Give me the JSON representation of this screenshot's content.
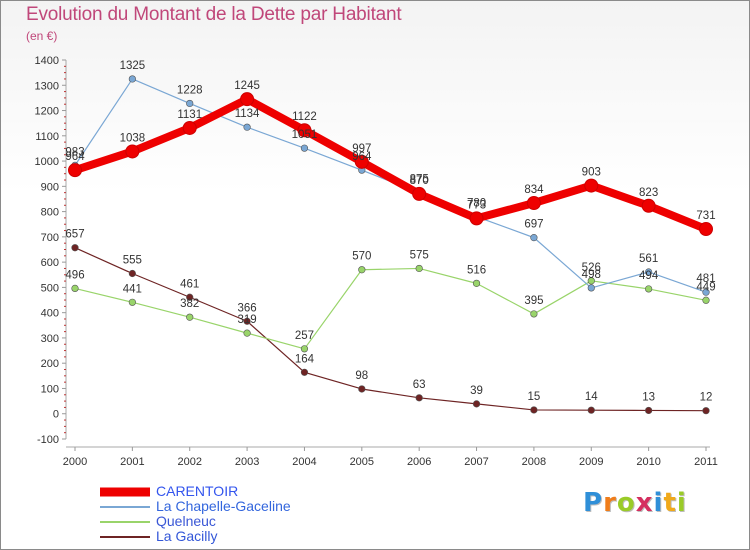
{
  "title": "Evolution du Montant de la Dette par Habitant",
  "subtitle": "(en €)",
  "logo": {
    "letters": [
      "P",
      "r",
      "o",
      "x",
      "i",
      "t",
      "i"
    ],
    "colors": [
      "#2f8fd8",
      "#f07d1a",
      "#9acb28",
      "#d52f5f",
      "#2f8fd8",
      "#f0a91a",
      "#9acb28"
    ]
  },
  "chart_data": {
    "type": "line",
    "x": [
      "2000",
      "2001",
      "2002",
      "2003",
      "2004",
      "2005",
      "2006",
      "2007",
      "2008",
      "2009",
      "2010",
      "2011"
    ],
    "ylim": [
      -100,
      1400
    ],
    "yticks": [
      "-100",
      "0",
      "100",
      "200",
      "300",
      "400",
      "500",
      "600",
      "700",
      "800",
      "900",
      "1000",
      "1100",
      "1200",
      "1300",
      "1400"
    ],
    "grid": false,
    "legend_position": "bottom-left",
    "series": [
      {
        "name": "CARENTOIR",
        "color": "#ee0000",
        "values": [
          964,
          1038,
          1131,
          1245,
          1122,
          997,
          870,
          773,
          834,
          903,
          823,
          731
        ]
      },
      {
        "name": "La Chapelle-Gaceline",
        "color": "#7aa7d4",
        "values": [
          983,
          1325,
          1228,
          1134,
          1051,
          964,
          875,
          780,
          697,
          498,
          561,
          481
        ]
      },
      {
        "name": "Quelneuc",
        "color": "#99d46a",
        "values": [
          496,
          441,
          382,
          319,
          257,
          570,
          575,
          516,
          395,
          526,
          494,
          449
        ]
      },
      {
        "name": "La Gacilly",
        "color": "#6e2424",
        "values": [
          657,
          555,
          461,
          366,
          164,
          98,
          63,
          39,
          15,
          14,
          13,
          12
        ]
      }
    ],
    "data_labels": [
      [
        "964",
        "1038",
        "1131",
        "1245",
        "1122",
        "997",
        "870",
        "773",
        "834",
        "903",
        "823",
        "731"
      ],
      [
        "983",
        "1325",
        "1228",
        "1134",
        "1051",
        "964",
        "875",
        "780",
        "697",
        "498",
        "561",
        "481"
      ],
      [
        "496",
        "441",
        "382",
        "319",
        "257",
        "570",
        "575",
        "516",
        "395",
        "526",
        "494",
        "449"
      ],
      [
        "657",
        "555",
        "461",
        "366",
        "164",
        "98",
        "63",
        "39",
        "15",
        "14",
        "13",
        "12"
      ]
    ]
  }
}
